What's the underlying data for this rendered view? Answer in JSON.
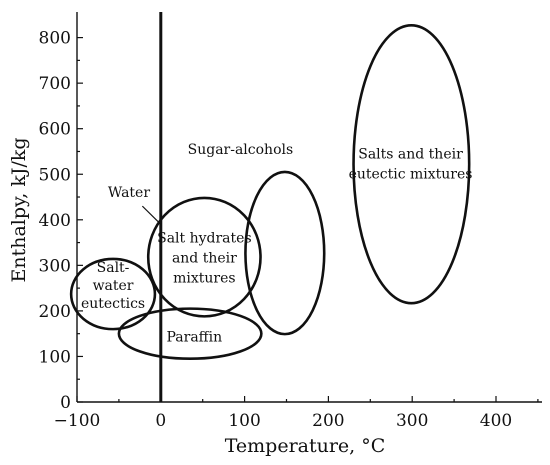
{
  "chart_data": {
    "type": "region-diagram",
    "title": "",
    "xlabel": "Temperature, °C",
    "ylabel": "Enthalpy, kJ/kg",
    "xlim": [
      -100,
      450
    ],
    "ylim": [
      0,
      850
    ],
    "xticks": [
      -100,
      0,
      100,
      200,
      300,
      400
    ],
    "yticks": [
      0,
      100,
      200,
      300,
      400,
      500,
      600,
      700,
      800
    ],
    "tick_labels_x": [
      "−100",
      "0",
      "100",
      "200",
      "300",
      "400"
    ],
    "tick_labels_y": [
      "0",
      "100",
      "200",
      "300",
      "400",
      "500",
      "600",
      "700",
      "800"
    ],
    "vertical_reference_x": 0,
    "regions": [
      {
        "name": "salt-water-eutectics",
        "label_lines": [
          "Salt-",
          "water",
          "eutectics"
        ],
        "center": [
          -57,
          237
        ],
        "rx": 50,
        "ry": 77,
        "rotation": 0
      },
      {
        "name": "paraffin",
        "label_lines": [
          "Paraffin"
        ],
        "center": [
          35,
          150
        ],
        "rx": 85,
        "ry": 55,
        "rotation": 0
      },
      {
        "name": "salt-hydrates",
        "label_lines": [
          "Salt hydrates",
          "and their",
          "mixtures"
        ],
        "center": [
          52,
          318
        ],
        "rx": 67,
        "ry": 130,
        "rotation": 0
      },
      {
        "name": "sugar-alcohols",
        "label_lines": [
          "Sugar-alcohols"
        ],
        "center": [
          148,
          327
        ],
        "rx": 47,
        "ry": 178,
        "rotation": 0
      },
      {
        "name": "salts-eutectic-mixtures",
        "label_lines": [
          "Salts and their",
          "eutectic mixtures"
        ],
        "center": [
          299,
          522
        ],
        "rx": 69,
        "ry": 305,
        "rotation": 0
      }
    ],
    "annotations": [
      {
        "name": "water",
        "text": "Water",
        "points_to": [
          0,
          390
        ]
      }
    ],
    "legend": "none",
    "grid": false
  }
}
